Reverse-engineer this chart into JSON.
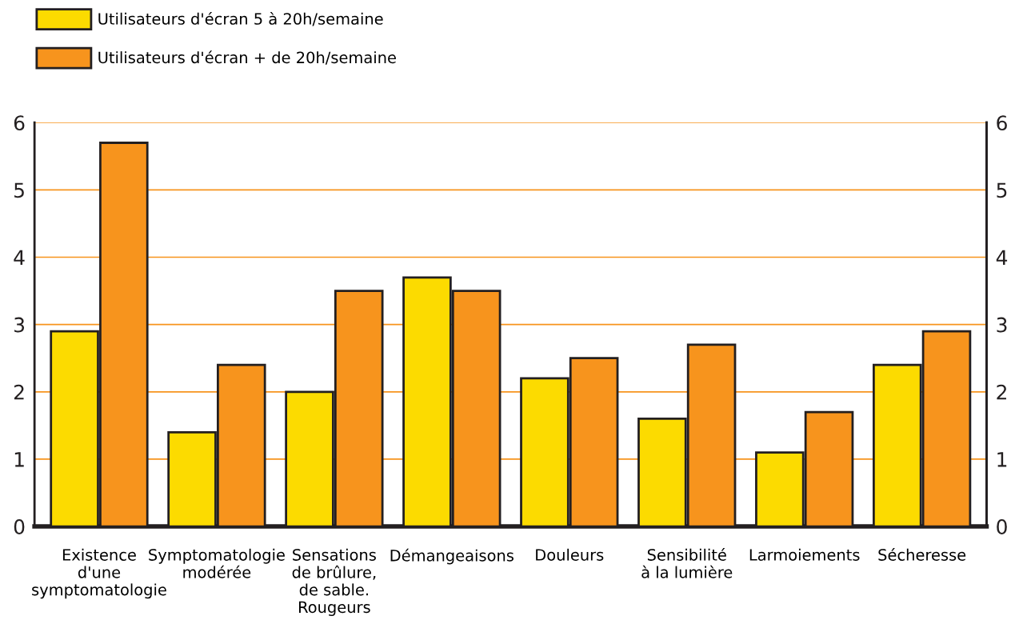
{
  "chart_data": {
    "type": "bar",
    "categories": [
      "Existence\nd'une\nsymptomatologie",
      "Symptomatologie\nmodérée",
      "Sensations\nde brûlure,\nde sable.\nRougeurs",
      "Démangeaisons",
      "Douleurs",
      "Sensibilité\nà la lumière",
      "Larmoiements",
      "Sécheresse"
    ],
    "series": [
      {
        "name": "Utilisateurs d'écran 5 à 20h/semaine",
        "color": "#fcdb00",
        "values": [
          2.9,
          1.4,
          2.0,
          3.7,
          2.2,
          1.6,
          1.1,
          2.4
        ]
      },
      {
        "name": "Utilisateurs d'écran + de 20h/semaine",
        "color": "#f7941d",
        "values": [
          5.7,
          2.4,
          3.5,
          3.5,
          2.5,
          2.7,
          1.7,
          2.9
        ]
      }
    ],
    "ylim": [
      0,
      6
    ],
    "yticks": [
      0,
      1,
      2,
      3,
      4,
      5,
      6
    ],
    "y2lim": [
      0,
      6
    ],
    "y2ticks": [
      0,
      1,
      2,
      3,
      4,
      5,
      6
    ],
    "grid": "y",
    "legend": "top left"
  }
}
